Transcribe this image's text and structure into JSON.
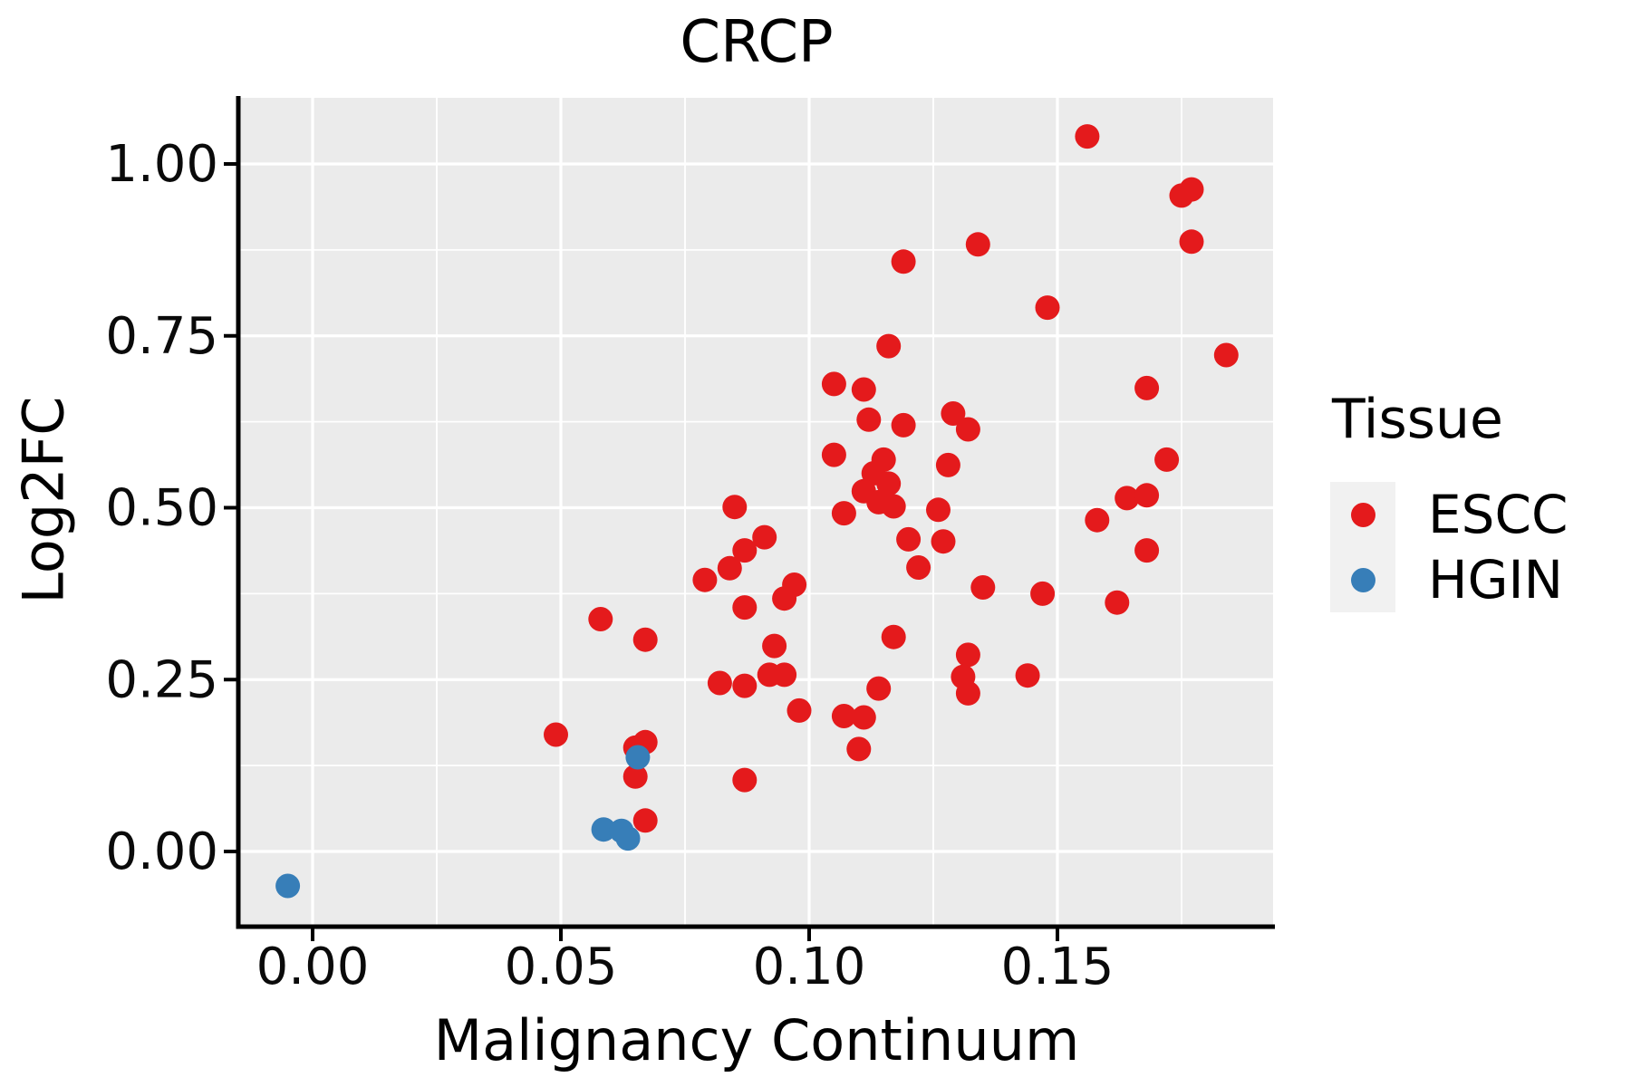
{
  "title": "CRCP",
  "legend": {
    "title": "Tissue",
    "items": [
      {
        "label": "ESCC",
        "color": "#E41A1C"
      },
      {
        "label": "HGIN",
        "color": "#377EB8"
      }
    ]
  },
  "colors": {
    "escc": "#E41A1C",
    "hgin": "#377EB8",
    "panel_bg": "#EBEBEB",
    "grid": "#FFFFFF",
    "axis": "#000000",
    "text": "#0a0a0a",
    "legend_key_bg": "#F1F1F1"
  },
  "chart_data": {
    "type": "scatter",
    "title": "CRCP",
    "xlabel": "Malignancy Continuum",
    "ylabel": "Log2FC",
    "xlim": [
      -0.0146,
      0.1934
    ],
    "ylim": [
      -0.107,
      1.096
    ],
    "x_ticks": [
      0.0,
      0.05,
      0.1,
      0.15
    ],
    "x_tick_labels": [
      "0.00",
      "0.05",
      "0.10",
      "0.15"
    ],
    "y_ticks": [
      0.0,
      0.25,
      0.5,
      0.75,
      1.0
    ],
    "y_tick_labels": [
      "0.00",
      "0.25",
      "0.50",
      "0.75",
      "1.00"
    ],
    "grid": "white major and minor gridlines on gray panel",
    "legend_position": "right",
    "legend_title": "Tissue",
    "series": [
      {
        "name": "ESCC",
        "color": "#E41A1C",
        "points": [
          [
            0.156,
            1.04
          ],
          [
            0.175,
            0.954
          ],
          [
            0.177,
            0.963
          ],
          [
            0.177,
            0.887
          ],
          [
            0.134,
            0.883
          ],
          [
            0.119,
            0.858
          ],
          [
            0.148,
            0.791
          ],
          [
            0.116,
            0.735
          ],
          [
            0.184,
            0.722
          ],
          [
            0.105,
            0.68
          ],
          [
            0.111,
            0.672
          ],
          [
            0.168,
            0.674
          ],
          [
            0.112,
            0.628
          ],
          [
            0.119,
            0.62
          ],
          [
            0.129,
            0.637
          ],
          [
            0.132,
            0.614
          ],
          [
            0.172,
            0.57
          ],
          [
            0.105,
            0.577
          ],
          [
            0.115,
            0.57
          ],
          [
            0.113,
            0.55
          ],
          [
            0.116,
            0.535
          ],
          [
            0.111,
            0.524
          ],
          [
            0.128,
            0.562
          ],
          [
            0.114,
            0.508
          ],
          [
            0.117,
            0.502
          ],
          [
            0.107,
            0.492
          ],
          [
            0.126,
            0.497
          ],
          [
            0.085,
            0.501
          ],
          [
            0.164,
            0.514
          ],
          [
            0.168,
            0.518
          ],
          [
            0.158,
            0.482
          ],
          [
            0.168,
            0.438
          ],
          [
            0.12,
            0.454
          ],
          [
            0.127,
            0.451
          ],
          [
            0.122,
            0.413
          ],
          [
            0.091,
            0.457
          ],
          [
            0.087,
            0.438
          ],
          [
            0.084,
            0.412
          ],
          [
            0.079,
            0.395
          ],
          [
            0.097,
            0.388
          ],
          [
            0.095,
            0.368
          ],
          [
            0.087,
            0.355
          ],
          [
            0.135,
            0.384
          ],
          [
            0.147,
            0.375
          ],
          [
            0.162,
            0.362
          ],
          [
            0.117,
            0.312
          ],
          [
            0.093,
            0.299
          ],
          [
            0.132,
            0.286
          ],
          [
            0.092,
            0.257
          ],
          [
            0.095,
            0.257
          ],
          [
            0.082,
            0.245
          ],
          [
            0.087,
            0.241
          ],
          [
            0.131,
            0.254
          ],
          [
            0.144,
            0.256
          ],
          [
            0.132,
            0.23
          ],
          [
            0.114,
            0.237
          ],
          [
            0.098,
            0.205
          ],
          [
            0.107,
            0.197
          ],
          [
            0.111,
            0.195
          ],
          [
            0.11,
            0.149
          ],
          [
            0.058,
            0.338
          ],
          [
            0.067,
            0.308
          ],
          [
            0.049,
            0.17
          ],
          [
            0.065,
            0.151
          ],
          [
            0.067,
            0.159
          ],
          [
            0.065,
            0.109
          ],
          [
            0.087,
            0.104
          ],
          [
            0.067,
            0.045
          ]
        ]
      },
      {
        "name": "HGIN",
        "color": "#377EB8",
        "points": [
          [
            -0.005,
            -0.05
          ],
          [
            0.0586,
            0.032
          ],
          [
            0.0622,
            0.03
          ],
          [
            0.0635,
            0.019
          ],
          [
            0.0655,
            0.137
          ]
        ]
      }
    ]
  }
}
